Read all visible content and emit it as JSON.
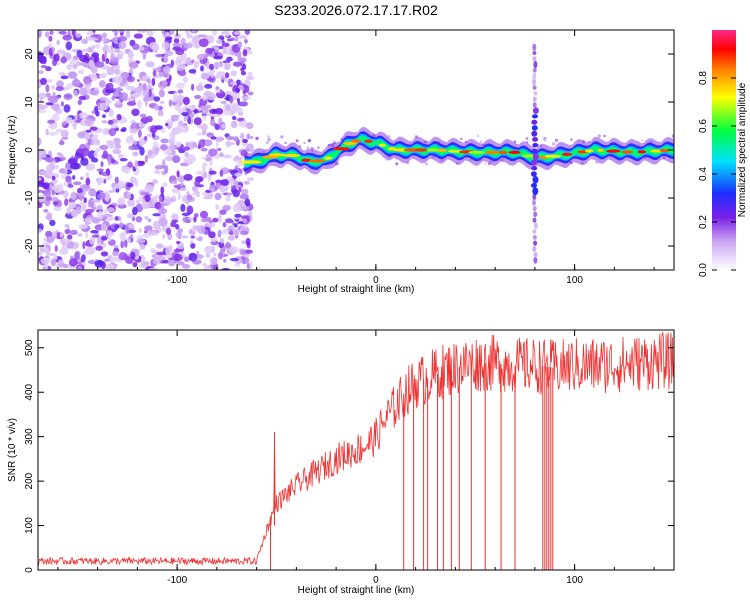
{
  "title": "S233.2026.072.17.17.R02",
  "colors": {
    "series": "#ee3333",
    "frame": "#000000",
    "background": "#ffffff"
  },
  "chart_data": [
    {
      "type": "heatmap",
      "xlabel": "Height of straight line (km)",
      "ylabel": "Frequency (Hz)",
      "xlim": [
        -170,
        150
      ],
      "ylim": [
        -25,
        25
      ],
      "xticks": [
        -100,
        0,
        100
      ],
      "yticks": [
        -20,
        -10,
        0,
        10,
        20
      ],
      "colorbar": {
        "label": "Normalized spectral amplitude",
        "range": [
          0,
          1
        ],
        "ticks": [
          "0.0",
          "0.2",
          "0.4",
          "0.6",
          "0.8"
        ],
        "tick_values": [
          0,
          0.2,
          0.4,
          0.6,
          0.8
        ]
      },
      "noise_region_x": [
        -170,
        -65
      ],
      "ridge": {
        "description": "narrow signal band near 0 Hz",
        "x": [
          -66,
          -60,
          -50,
          -40,
          -33,
          -25,
          -15,
          -8,
          0,
          10,
          30,
          50,
          70,
          80,
          85,
          95,
          110,
          130,
          150
        ],
        "freq_hz": [
          -2.5,
          -2.5,
          -1.0,
          -1.2,
          -2.5,
          -2.0,
          1.0,
          2.2,
          1.5,
          0.0,
          0.0,
          -0.5,
          -0.5,
          -1.5,
          -1.5,
          -1.0,
          0.0,
          -0.5,
          0.0
        ]
      },
      "vertical_streak_x": 80
    },
    {
      "type": "line",
      "xlabel": "Height of straight line (km)",
      "ylabel": "SNR (10 * v/v)",
      "xlim": [
        -170,
        150
      ],
      "ylim": [
        0,
        540
      ],
      "xticks": [
        -100,
        0,
        100
      ],
      "yticks": [
        0,
        100,
        200,
        300,
        400,
        500
      ],
      "envelope": {
        "x": [
          -170,
          -60,
          -55,
          -50,
          -40,
          -30,
          -20,
          -10,
          -5,
          0,
          5,
          10,
          15,
          20,
          25,
          30,
          35,
          40,
          50,
          60,
          70,
          80,
          90,
          100,
          110,
          120,
          130,
          140,
          150
        ],
        "y": [
          20,
          20,
          90,
          150,
          190,
          220,
          250,
          270,
          280,
          300,
          340,
          370,
          400,
          420,
          430,
          440,
          450,
          455,
          465,
          465,
          460,
          460,
          455,
          460,
          460,
          462,
          465,
          470,
          470
        ]
      },
      "spike_x": [
        -53,
        14,
        19,
        24,
        26,
        31,
        34,
        38,
        42,
        48,
        55,
        63,
        70,
        84,
        85,
        86,
        87,
        88,
        89
      ],
      "spike_floor": 0,
      "spike_peak_x": -51,
      "spike_peak_y": 310
    }
  ]
}
